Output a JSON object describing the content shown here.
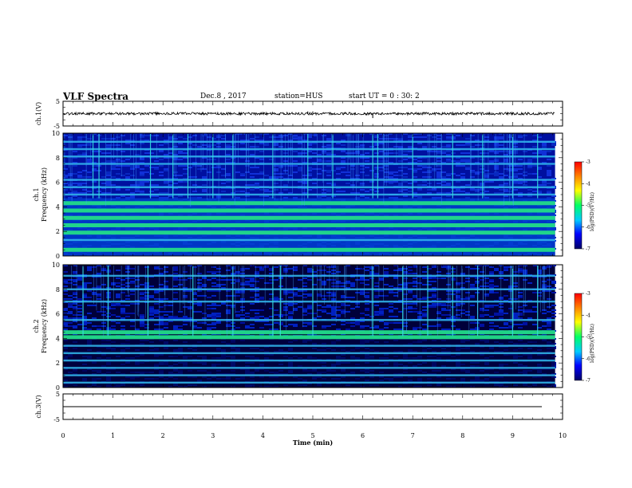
{
  "header": {
    "title": "VLF Spectra",
    "date": "Dec.8 , 2017",
    "station": "station=HUS",
    "start": "start UT = 0 : 30: 2"
  },
  "chart_data": [
    {
      "type": "line",
      "panel": "ch1-waveform",
      "ylabel": "ch.1(V)",
      "ylim": [
        -5,
        5
      ],
      "yticks": [
        "5",
        "-5"
      ],
      "xlim": [
        0,
        10
      ],
      "baseline": 0,
      "spikes": [
        {
          "x": 4.9,
          "y": 0.9
        },
        {
          "x": 5.0,
          "y": 0.9
        },
        {
          "x": 6.2,
          "y": -1.8
        },
        {
          "x": 7.8,
          "y": 0.7
        }
      ]
    },
    {
      "type": "heatmap",
      "panel": "ch1-spectrogram",
      "ylabel": "Frequency (kHz)",
      "ylabel_prefix": "ch.1",
      "ylim": [
        0,
        10
      ],
      "yticks": [
        "0",
        "2",
        "4",
        "6",
        "8",
        "10"
      ],
      "xlim": [
        0,
        10
      ],
      "bands_khz": [
        0.5,
        1.3,
        1.9,
        2.5,
        3.1,
        3.7,
        4.3,
        5.0,
        5.6,
        6.2,
        7.5,
        8.1,
        8.7,
        9.3
      ],
      "bright_bands_khz": [
        0.5,
        1.9,
        2.5,
        3.1,
        3.7,
        4.3
      ],
      "spikes_min": [
        0.6,
        0.72,
        1.75,
        2.2,
        2.5,
        3.0,
        3.4,
        4.2,
        4.9,
        5.4,
        6.2,
        6.3,
        7.0,
        7.8,
        8.4,
        9.0,
        9.5
      ],
      "colorbar": {
        "label": "log(PSD)(V²/Hz)",
        "range": [
          -7,
          -3
        ],
        "ticks": [
          "-3",
          "-4",
          "-5",
          "-6",
          "-7"
        ],
        "colors": [
          "#ff0000",
          "#ff8800",
          "#ffff00",
          "#00ff66",
          "#00ccff",
          "#0000ff",
          "#000066"
        ]
      }
    },
    {
      "type": "heatmap",
      "panel": "ch2-spectrogram",
      "ylabel": "Frequency (kHz)",
      "ylabel_prefix": "ch.2",
      "ylim": [
        0,
        10
      ],
      "yticks": [
        "0",
        "2",
        "4",
        "6",
        "8",
        "10"
      ],
      "xlim": [
        0,
        10
      ],
      "bands_khz": [
        0.4,
        1.0,
        1.6,
        2.2,
        2.8,
        3.4,
        4.1,
        4.5,
        5.5,
        7.0,
        8.0,
        9.1
      ],
      "bright_bands_khz": [
        4.1,
        4.5
      ],
      "spikes_min": [
        0.4,
        0.9,
        1.7,
        2.6,
        3.4,
        4.2,
        4.35,
        5.0,
        6.2,
        6.8,
        7.3,
        7.8,
        8.3,
        9.0,
        9.5
      ],
      "colorbar": {
        "label": "log(PSD)(V²/Hz)",
        "range": [
          -7,
          -3
        ],
        "ticks": [
          "-3",
          "-4",
          "-5",
          "-6",
          "-7"
        ],
        "colors": [
          "#ff0000",
          "#ff8800",
          "#ffff00",
          "#00ff66",
          "#00ccff",
          "#0000ff",
          "#000066"
        ]
      }
    },
    {
      "type": "line",
      "panel": "ch3-waveform",
      "ylabel": "ch.3(V)",
      "ylim": [
        -5,
        5
      ],
      "yticks": [
        "5",
        "-5"
      ],
      "xlim": [
        0,
        10
      ],
      "baseline": 0,
      "spikes": []
    }
  ],
  "xaxis": {
    "label": "Time (min)",
    "range": [
      0,
      10
    ],
    "ticks": [
      "0",
      "1",
      "2",
      "3",
      "4",
      "5",
      "6",
      "7",
      "8",
      "9",
      "10"
    ]
  }
}
